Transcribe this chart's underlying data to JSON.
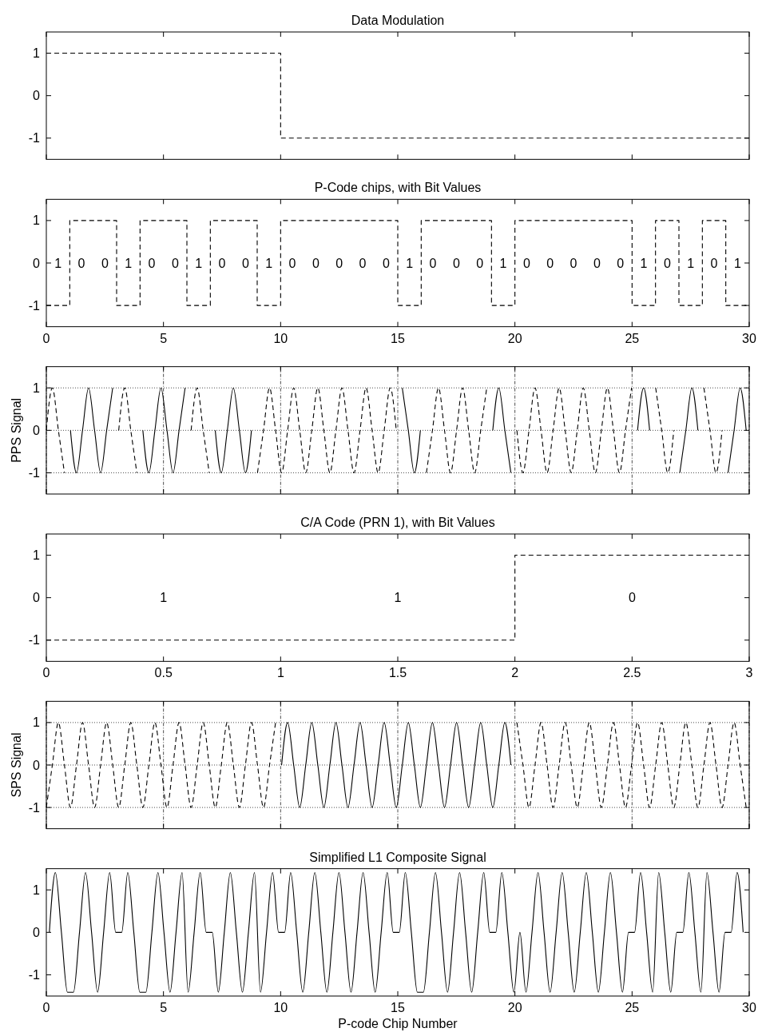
{
  "chart_data": [
    {
      "type": "step",
      "title": "Data Modulation",
      "x": [
        0,
        10,
        30
      ],
      "values": [
        1,
        -1,
        -1
      ],
      "line_style": "dashed",
      "xlim": [
        0,
        30
      ],
      "xticks": [
        0,
        5,
        10,
        15,
        20,
        25,
        30
      ],
      "ylim": [
        -1.5,
        1.5
      ],
      "yticks": [
        -1,
        0,
        1
      ],
      "tick_labels": "y"
    },
    {
      "type": "step",
      "title": "P-Code chips, with Bit Values",
      "x": [
        0,
        1,
        2,
        3,
        4,
        5,
        6,
        7,
        8,
        9,
        10,
        11,
        12,
        13,
        14,
        15,
        16,
        17,
        18,
        19,
        20,
        21,
        22,
        23,
        24,
        25,
        26,
        27,
        28,
        29,
        30
      ],
      "values": [
        -1,
        1,
        1,
        -1,
        1,
        1,
        -1,
        1,
        1,
        -1,
        1,
        1,
        1,
        1,
        1,
        -1,
        1,
        1,
        1,
        -1,
        1,
        1,
        1,
        1,
        1,
        -1,
        1,
        -1,
        1,
        -1,
        -1
      ],
      "line_style": "dashed",
      "xlim": [
        0,
        30
      ],
      "xticks": [
        0,
        5,
        10,
        15,
        20,
        25,
        30
      ],
      "ylim": [
        -1.5,
        1.5
      ],
      "yticks": [
        -1,
        0,
        1
      ],
      "annotations": [
        "1",
        "0",
        "0",
        "1",
        "0",
        "0",
        "1",
        "0",
        "0",
        "1",
        "0",
        "0",
        "0",
        "0",
        "0",
        "1",
        "0",
        "0",
        "0",
        "1",
        "0",
        "0",
        "0",
        "0",
        "0",
        "1",
        "0",
        "1",
        "0",
        "1"
      ]
    },
    {
      "type": "line",
      "ylabel": "PPS Signal",
      "grid": true,
      "xlim": [
        0,
        30
      ],
      "xticks": [
        0,
        5,
        10,
        15,
        20,
        25,
        30
      ],
      "ylim": [
        -1.5,
        1.5
      ],
      "yticks": [
        -1,
        0,
        1
      ],
      "tick_labels": "y",
      "x": [
        0,
        0.2575,
        0.515,
        0.7725,
        1.03,
        1.2875,
        1.545,
        1.8025,
        2.06,
        2.3175,
        2.575,
        2.8325,
        3.09,
        3.3475,
        3.605,
        3.8625,
        4.12,
        4.3775,
        4.635,
        4.8925,
        5.15,
        5.4075,
        5.665,
        5.9225,
        6.18,
        6.4375,
        6.695,
        6.9525,
        7.21,
        7.4675,
        7.725,
        7.9825,
        8.24,
        8.4975,
        8.755,
        9.0125,
        9.27,
        9.5275,
        9.785,
        10.0425,
        10.3,
        10.5575,
        10.815,
        11.0725,
        11.33,
        11.5875,
        11.845,
        12.1025,
        12.36,
        12.6175,
        12.875,
        13.1325,
        13.39,
        13.6475,
        13.905,
        14.1625,
        14.42,
        14.6775,
        14.935,
        15.1925,
        15.45,
        15.7075,
        15.965,
        16.2225,
        16.48,
        16.7375,
        16.995,
        17.2525,
        17.51,
        17.7675,
        18.025,
        18.2825,
        18.54,
        18.7975,
        19.055,
        19.3125,
        19.57,
        19.8275,
        20.085,
        20.3425,
        20.6,
        20.8575,
        21.115,
        21.3725,
        21.63,
        21.8875,
        22.145,
        22.4025,
        22.66,
        22.9175,
        23.175,
        23.4325,
        23.69,
        23.9475,
        24.205,
        24.4625,
        24.72,
        24.9775,
        25.235,
        25.4925,
        25.75,
        26.0075,
        26.265,
        26.5225,
        26.78,
        27.0375,
        27.295,
        27.5525,
        27.81,
        28.0675,
        28.325,
        28.5825,
        28.84,
        29.0975,
        29.355,
        29.6125,
        29.87
      ],
      "series": [
        {
          "color": "#000000",
          "line_style": "dashed",
          "values": [
            0,
            1,
            0,
            -1,
            null,
            null,
            null,
            null,
            null,
            null,
            null,
            null,
            0,
            1,
            0,
            -1,
            null,
            null,
            null,
            null,
            null,
            null,
            null,
            null,
            0,
            1,
            0,
            -1,
            null,
            null,
            null,
            null,
            null,
            null,
            null,
            -1,
            0,
            1,
            0,
            -1,
            0,
            1,
            0,
            -1,
            0,
            1,
            0,
            -1,
            0,
            1,
            0,
            -1,
            0,
            1,
            0,
            -1,
            0,
            1,
            0,
            null,
            null,
            null,
            null,
            -1,
            0,
            1,
            0,
            -1,
            0,
            1,
            0,
            -1,
            0,
            1,
            null,
            null,
            null,
            null,
            0,
            -1,
            0,
            1,
            0,
            -1,
            0,
            1,
            0,
            -1,
            0,
            1,
            0,
            -1,
            0,
            1,
            0,
            -1,
            0,
            1,
            null,
            null,
            null,
            1,
            0,
            -1,
            0,
            null,
            null,
            null,
            null,
            1,
            0,
            -1,
            0,
            null,
            null,
            null,
            null
          ]
        },
        {
          "color": "#000000",
          "line_style": "solid",
          "values": [
            null,
            null,
            null,
            null,
            0,
            -1,
            0,
            1,
            0,
            -1,
            0,
            1,
            null,
            null,
            null,
            null,
            0,
            -1,
            0,
            1,
            0,
            -1,
            0,
            1,
            null,
            null,
            null,
            null,
            0,
            -1,
            0,
            1,
            0,
            -1,
            0,
            null,
            null,
            null,
            null,
            null,
            null,
            null,
            null,
            null,
            null,
            null,
            null,
            null,
            null,
            null,
            null,
            null,
            null,
            null,
            null,
            null,
            null,
            null,
            null,
            1,
            0,
            -1,
            0,
            null,
            null,
            null,
            null,
            null,
            null,
            null,
            null,
            null,
            null,
            null,
            0,
            1,
            0,
            -1,
            null,
            null,
            null,
            null,
            null,
            null,
            null,
            null,
            null,
            null,
            null,
            null,
            null,
            null,
            null,
            null,
            null,
            null,
            null,
            null,
            0,
            1,
            0,
            null,
            null,
            null,
            null,
            -1,
            0,
            1,
            0,
            null,
            null,
            null,
            null,
            -1,
            0,
            1,
            0
          ]
        }
      ]
    },
    {
      "type": "step",
      "title": "C/A Code (PRN 1), with Bit Values",
      "x": [
        0,
        1,
        2,
        3
      ],
      "values": [
        -1,
        -1,
        1,
        1
      ],
      "line_style": "dashed",
      "xlim": [
        0,
        3
      ],
      "xticks": [
        0,
        0.5,
        1,
        1.5,
        2,
        2.5,
        3
      ],
      "ylim": [
        -1.5,
        1.5
      ],
      "yticks": [
        -1,
        0,
        1
      ],
      "annotations": [
        "1",
        "1",
        "0"
      ]
    },
    {
      "type": "line",
      "ylabel": "SPS Signal",
      "grid": true,
      "xlim": [
        0,
        30
      ],
      "xticks": [
        0,
        5,
        10,
        15,
        20,
        25,
        30
      ],
      "ylim": [
        -1.5,
        1.5
      ],
      "yticks": [
        -1,
        0,
        1
      ],
      "tick_labels": "y",
      "x": [
        0,
        0.2575,
        0.515,
        0.7725,
        1.03,
        1.2875,
        1.545,
        1.8025,
        2.06,
        2.3175,
        2.575,
        2.8325,
        3.09,
        3.3475,
        3.605,
        3.8625,
        4.12,
        4.3775,
        4.635,
        4.8925,
        5.15,
        5.4075,
        5.665,
        5.9225,
        6.18,
        6.4375,
        6.695,
        6.9525,
        7.21,
        7.4675,
        7.725,
        7.9825,
        8.24,
        8.4975,
        8.755,
        9.0125,
        9.27,
        9.5275,
        9.785,
        10.0425,
        10.3,
        10.5575,
        10.815,
        11.0725,
        11.33,
        11.5875,
        11.845,
        12.1025,
        12.36,
        12.6175,
        12.875,
        13.1325,
        13.39,
        13.6475,
        13.905,
        14.1625,
        14.42,
        14.6775,
        14.935,
        15.1925,
        15.45,
        15.7075,
        15.965,
        16.2225,
        16.48,
        16.7375,
        16.995,
        17.2525,
        17.51,
        17.7675,
        18.025,
        18.2825,
        18.54,
        18.7975,
        19.055,
        19.3125,
        19.57,
        19.8275,
        20.085,
        20.3425,
        20.6,
        20.8575,
        21.115,
        21.3725,
        21.63,
        21.8875,
        22.145,
        22.4025,
        22.66,
        22.9175,
        23.175,
        23.4325,
        23.69,
        23.9475,
        24.205,
        24.4625,
        24.72,
        24.9775,
        25.235,
        25.4925,
        25.75,
        26.0075,
        26.265,
        26.5225,
        26.78,
        27.0375,
        27.295,
        27.5525,
        27.81,
        28.0675,
        28.325,
        28.5825,
        28.84,
        29.0975,
        29.355,
        29.6125,
        29.87
      ],
      "series": [
        {
          "color": "#000000",
          "line_style": "dashed",
          "values": [
            -1,
            0,
            1,
            0,
            -1,
            0,
            1,
            0,
            -1,
            0,
            1,
            0,
            -1,
            0,
            1,
            0,
            -1,
            0,
            1,
            0,
            -1,
            0,
            1,
            0,
            -1,
            0,
            1,
            0,
            -1,
            0,
            1,
            0,
            -1,
            0,
            1,
            0,
            -1,
            0,
            1,
            null,
            null,
            null,
            null,
            null,
            null,
            null,
            null,
            null,
            null,
            null,
            null,
            null,
            null,
            null,
            null,
            null,
            null,
            null,
            null,
            null,
            null,
            null,
            null,
            null,
            null,
            null,
            null,
            null,
            null,
            null,
            null,
            null,
            null,
            null,
            null,
            null,
            null,
            null,
            1,
            0,
            -1,
            0,
            1,
            0,
            -1,
            0,
            1,
            0,
            -1,
            0,
            1,
            0,
            -1,
            0,
            1,
            0,
            -1,
            0,
            1,
            0,
            -1,
            0,
            1,
            0,
            -1,
            0,
            1,
            0,
            -1,
            0,
            1,
            0,
            -1,
            0,
            1,
            0,
            -1
          ]
        },
        {
          "color": "#000000",
          "line_style": "solid",
          "values": [
            null,
            null,
            null,
            null,
            null,
            null,
            null,
            null,
            null,
            null,
            null,
            null,
            null,
            null,
            null,
            null,
            null,
            null,
            null,
            null,
            null,
            null,
            null,
            null,
            null,
            null,
            null,
            null,
            null,
            null,
            null,
            null,
            null,
            null,
            null,
            null,
            null,
            null,
            null,
            0,
            1,
            0,
            -1,
            0,
            1,
            0,
            -1,
            0,
            1,
            0,
            -1,
            0,
            1,
            0,
            -1,
            0,
            1,
            0,
            -1,
            0,
            1,
            0,
            -1,
            0,
            1,
            0,
            -1,
            0,
            1,
            0,
            -1,
            0,
            1,
            0,
            -1,
            0,
            1,
            0,
            null,
            null,
            null,
            null,
            null,
            null,
            null,
            null,
            null,
            null,
            null,
            null,
            null,
            null,
            null,
            null,
            null,
            null,
            null,
            null,
            null,
            null,
            null,
            null,
            null,
            null,
            null,
            null,
            null,
            null,
            null,
            null,
            null,
            null,
            null,
            null,
            null,
            null,
            null
          ]
        }
      ]
    },
    {
      "type": "line",
      "title": "Simplified L1 Composite Signal",
      "xlabel": "P-code Chip Number",
      "line_style": "solid",
      "xlim": [
        0,
        30
      ],
      "xticks": [
        0,
        5,
        10,
        15,
        20,
        25,
        30
      ],
      "ylim": [
        -1.5,
        1.5
      ],
      "yticks": [
        -1,
        0,
        1
      ],
      "x": [
        0.129,
        0.386,
        0.644,
        0.901,
        1.159,
        1.416,
        1.674,
        1.931,
        2.189,
        2.446,
        2.704,
        2.961,
        3.219,
        3.476,
        3.734,
        3.991,
        4.249,
        4.506,
        4.764,
        5.021,
        5.279,
        5.536,
        5.794,
        6.051,
        6.309,
        6.566,
        6.824,
        7.081,
        7.339,
        7.596,
        7.854,
        8.111,
        8.369,
        8.626,
        8.884,
        9.141,
        9.399,
        9.656,
        9.914,
        10.171,
        10.429,
        10.686,
        10.944,
        11.201,
        11.459,
        11.716,
        11.974,
        12.231,
        12.489,
        12.746,
        13.004,
        13.261,
        13.519,
        13.776,
        14.034,
        14.291,
        14.549,
        14.806,
        15.064,
        15.321,
        15.579,
        15.836,
        16.094,
        16.351,
        16.609,
        16.866,
        17.124,
        17.381,
        17.639,
        17.896,
        18.154,
        18.411,
        18.669,
        18.926,
        19.184,
        19.441,
        19.699,
        19.956,
        20.214,
        20.471,
        20.729,
        20.986,
        21.244,
        21.501,
        21.759,
        22.016,
        22.274,
        22.531,
        22.789,
        23.046,
        23.304,
        23.561,
        23.819,
        24.076,
        24.334,
        24.591,
        24.849,
        25.106,
        25.364,
        25.621,
        25.879,
        26.136,
        26.394,
        26.651,
        26.909,
        27.166,
        27.424,
        27.681,
        27.939,
        28.196,
        28.454,
        28.711,
        28.969,
        29.226,
        29.484,
        29.741
      ],
      "values": [
        0,
        1.41,
        0,
        -1.41,
        -1.41,
        0,
        1.41,
        0,
        -1.41,
        0,
        1.41,
        0,
        0,
        1.41,
        0,
        -1.41,
        -1.41,
        0,
        1.41,
        0,
        -1.41,
        0,
        1.41,
        -1.41,
        0,
        1.41,
        0,
        0,
        -1.41,
        0,
        1.41,
        0,
        -1.41,
        0,
        1.41,
        -1.41,
        0,
        1.41,
        0,
        0,
        1.41,
        0,
        -1.41,
        0,
        1.41,
        0,
        -1.41,
        0,
        1.41,
        0,
        -1.41,
        0,
        1.41,
        0,
        -1.41,
        0,
        1.41,
        0,
        0,
        1.41,
        0,
        -1.41,
        -1.41,
        0,
        1.41,
        0,
        -1.41,
        0,
        1.41,
        0,
        -1.41,
        0,
        1.41,
        0,
        0,
        1.41,
        0,
        -1.41,
        0,
        -1.41,
        0,
        1.41,
        0,
        -1.41,
        0,
        1.41,
        0,
        -1.41,
        0,
        1.41,
        0,
        -1.41,
        0,
        1.41,
        0,
        -1.41,
        0,
        0,
        1.41,
        0,
        -1.41,
        1.41,
        0,
        -1.41,
        0,
        0,
        1.41,
        0,
        -1.41,
        1.41,
        0,
        -1.41,
        0,
        0,
        1.41,
        0
      ]
    }
  ]
}
